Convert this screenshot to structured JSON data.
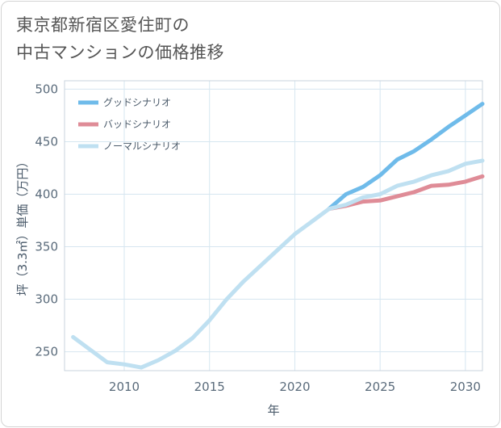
{
  "title": {
    "line1": "東京都新宿区愛住町の",
    "line2": "中古マンションの価格推移"
  },
  "chart_data": {
    "type": "line",
    "xlabel": "年",
    "ylabel": "坪（3.3㎡）単価（万円）",
    "xlim": [
      2006.5,
      2031
    ],
    "ylim": [
      232,
      508
    ],
    "xticks": [
      2010,
      2015,
      2020,
      2025,
      2030
    ],
    "yticks": [
      250,
      300,
      350,
      400,
      450,
      500
    ],
    "grid": true,
    "legend_position": "top-left",
    "series": [
      {
        "name": "グッドシナリオ",
        "color": "#6fbbea",
        "x": [
          2022,
          2023,
          2024,
          2025,
          2026,
          2027,
          2028,
          2029,
          2030,
          2031
        ],
        "y": [
          386,
          400,
          407,
          418,
          433,
          441,
          452,
          464,
          475,
          486
        ]
      },
      {
        "name": "バッドシナリオ",
        "color": "#df8c97",
        "x": [
          2022,
          2023,
          2024,
          2025,
          2026,
          2027,
          2028,
          2029,
          2030,
          2031
        ],
        "y": [
          386,
          389,
          393,
          394,
          398,
          402,
          408,
          409,
          412,
          417
        ]
      },
      {
        "name": "ノーマルシナリオ",
        "color": "#bfe0f1",
        "x": [
          2007,
          2008,
          2009,
          2010,
          2011,
          2012,
          2013,
          2014,
          2015,
          2016,
          2017,
          2018,
          2019,
          2020,
          2021,
          2022,
          2023,
          2024,
          2025,
          2026,
          2027,
          2028,
          2029,
          2030,
          2031
        ],
        "y": [
          264,
          252,
          240,
          238,
          235,
          242,
          251,
          263,
          280,
          300,
          317,
          332,
          347,
          362,
          374,
          386,
          390,
          397,
          400,
          408,
          412,
          418,
          422,
          429,
          432
        ]
      }
    ]
  }
}
